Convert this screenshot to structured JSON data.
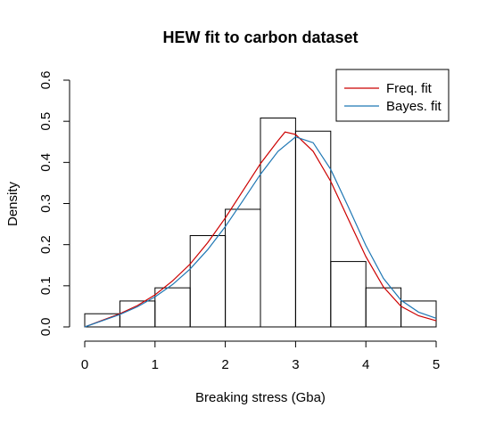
{
  "chart_data": {
    "type": "bar",
    "title": "HEW fit to carbon dataset",
    "xlabel": "Breaking stress (Gba)",
    "ylabel": "Density",
    "xlim": [
      0,
      5
    ],
    "ylim": [
      0,
      0.6
    ],
    "x_ticks": [
      "0",
      "1",
      "2",
      "3",
      "4",
      "5"
    ],
    "y_ticks": [
      "0.0",
      "0.1",
      "0.2",
      "0.3",
      "0.4",
      "0.5",
      "0.6"
    ],
    "histogram": {
      "bins": [
        [
          0,
          0.5
        ],
        [
          0.5,
          1.0
        ],
        [
          1.0,
          1.5
        ],
        [
          1.5,
          2.0
        ],
        [
          2.0,
          2.5
        ],
        [
          2.5,
          3.0
        ],
        [
          3.0,
          3.5
        ],
        [
          3.5,
          4.0
        ],
        [
          4.0,
          4.5
        ],
        [
          4.5,
          5.0
        ]
      ],
      "density": [
        0.032,
        0.063,
        0.095,
        0.222,
        0.286,
        0.508,
        0.476,
        0.159,
        0.095,
        0.063
      ]
    },
    "series": [
      {
        "name": "Freq. fit",
        "color": "#cc0000",
        "x": [
          0,
          0.25,
          0.5,
          0.75,
          1.0,
          1.25,
          1.5,
          1.75,
          2.0,
          2.25,
          2.5,
          2.75,
          2.85,
          3.0,
          3.25,
          3.5,
          3.75,
          4.0,
          4.25,
          4.5,
          4.75,
          5.0
        ],
        "y": [
          0.0,
          0.016,
          0.032,
          0.052,
          0.078,
          0.112,
          0.153,
          0.205,
          0.265,
          0.331,
          0.397,
          0.453,
          0.474,
          0.468,
          0.427,
          0.354,
          0.262,
          0.171,
          0.097,
          0.05,
          0.027,
          0.015
        ]
      },
      {
        "name": "Bayes. fit",
        "color": "#1f77b4",
        "x": [
          0,
          0.25,
          0.5,
          0.75,
          1.0,
          1.25,
          1.5,
          1.75,
          2.0,
          2.25,
          2.5,
          2.75,
          3.0,
          3.25,
          3.5,
          3.75,
          4.0,
          4.25,
          4.5,
          4.75,
          5.0
        ],
        "y": [
          0.0,
          0.015,
          0.03,
          0.049,
          0.073,
          0.103,
          0.141,
          0.188,
          0.244,
          0.307,
          0.371,
          0.427,
          0.462,
          0.448,
          0.383,
          0.292,
          0.198,
          0.118,
          0.065,
          0.036,
          0.021
        ]
      }
    ],
    "legend": "top-right",
    "grid": false
  }
}
